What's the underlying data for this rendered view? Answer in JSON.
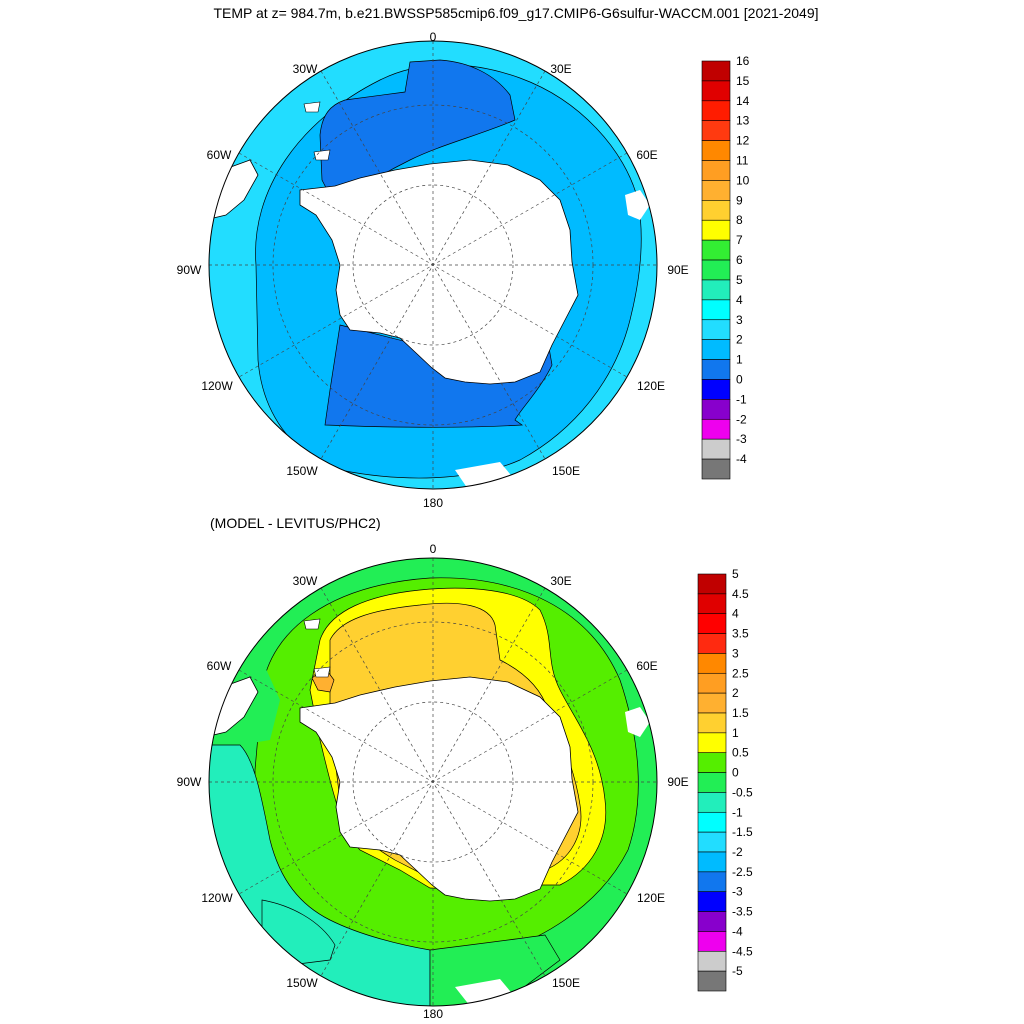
{
  "figure": {
    "title": "TEMP at z= 984.7m, b.e21.BWSSP585cmip6.f09_g17.CMIP6-G6sulfur-WACCM.001 [2021-2049]",
    "subtitle": "(MODEL - LEVITUS/PHC2)"
  },
  "longitude_labels": [
    "0",
    "30E",
    "60E",
    "90E",
    "120E",
    "150E",
    "180",
    "150W",
    "120W",
    "90W",
    "60W",
    "30W"
  ],
  "panels": [
    {
      "id": "model",
      "projection": "south-polar-stereographic",
      "field": "ocean temperature at 984.7 m",
      "dominant_values": "2 to 3 near Antarctica in Weddell and Ross Seas, 3 to 4 on the outer ring",
      "colorbar": {
        "labels": [
          "16",
          "15",
          "14",
          "13",
          "12",
          "11",
          "10",
          "9",
          "8",
          "7",
          "6",
          "5",
          "4",
          "3",
          "2",
          "1",
          "0",
          "-1",
          "-2",
          "-3",
          "-4"
        ],
        "colors": [
          "#c00000",
          "#e00000",
          "#ff1c00",
          "#ff3a10",
          "#ff8800",
          "#ff9e22",
          "#ffb030",
          "#ffd030",
          "#ffff00",
          "#33ee33",
          "#22ee55",
          "#22eebb",
          "#00ffff",
          "#22ddff",
          "#00bbff",
          "#1177ee",
          "#0000ff",
          "#8800cc",
          "#ee00ee",
          "#cccccc",
          "#777777"
        ]
      }
    },
    {
      "id": "difference",
      "projection": "south-polar-stereographic",
      "field": "model minus Levitus/PHC2 temperature",
      "dominant_values": "1.5 to 2.5 around the Antarctic margin, 0 to 1 on the outer ring, -0.5 to 0 patches in the Pacific sector",
      "colorbar": {
        "labels": [
          "5",
          "4.5",
          "4",
          "3.5",
          "3",
          "2.5",
          "2",
          "1.5",
          "1",
          "0.5",
          "0",
          "-0.5",
          "-1",
          "-1.5",
          "-2",
          "-2.5",
          "-3",
          "-3.5",
          "-4",
          "-4.5",
          "-5"
        ],
        "colors": [
          "#c00000",
          "#e00000",
          "#ff0000",
          "#ff2a10",
          "#ff8800",
          "#ff9e22",
          "#ffb030",
          "#ffd030",
          "#ffff00",
          "#55ee00",
          "#22ee55",
          "#22eebb",
          "#00ffff",
          "#22ddff",
          "#00bbff",
          "#1177ee",
          "#0000ff",
          "#8800cc",
          "#ee00ee",
          "#cccccc",
          "#777777"
        ]
      }
    }
  ]
}
